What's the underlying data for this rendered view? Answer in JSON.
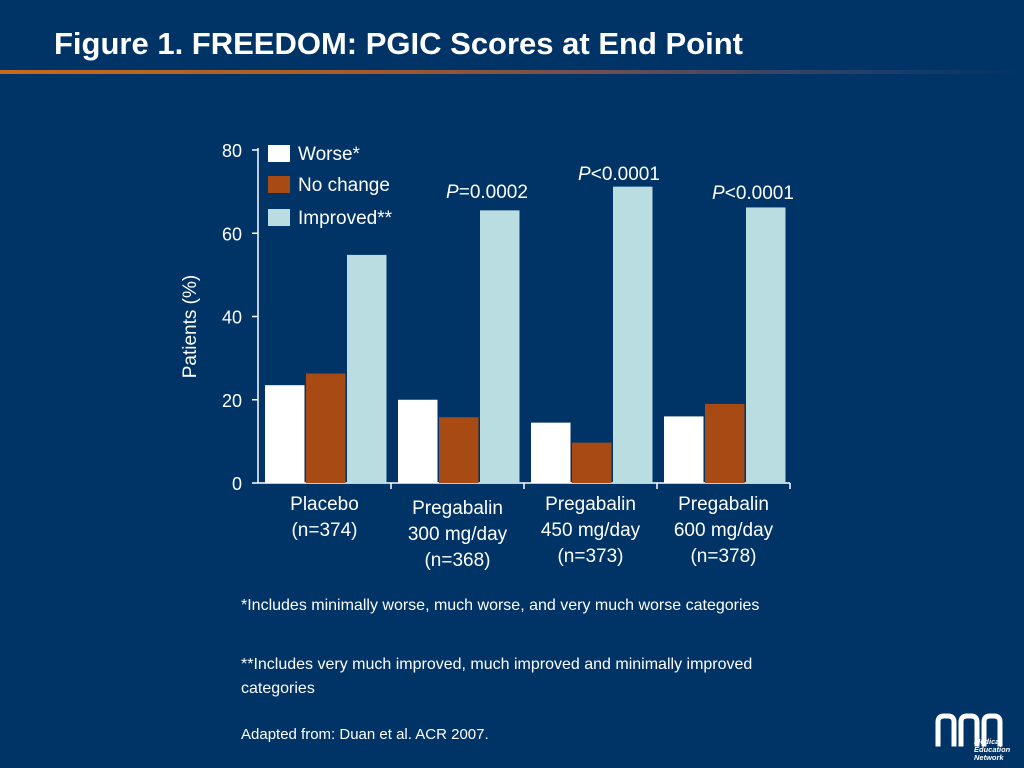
{
  "title": "Figure 1. FREEDOM: PGIC Scores at End Point",
  "colors": {
    "background": "#003366",
    "worse": "#ffffff",
    "no_change": "#a84a14",
    "improved": "#b9dde1",
    "title_rule": "#c86a1e"
  },
  "chart_data": {
    "type": "bar",
    "title": "",
    "xlabel": "",
    "ylabel": "Patients (%)",
    "ylim": [
      0,
      80
    ],
    "yticks": [
      0,
      20,
      40,
      60,
      80
    ],
    "categories": [
      [
        "Placebo",
        "(n=374)"
      ],
      [
        "Pregabalin",
        "300 mg/day",
        "(n=368)"
      ],
      [
        "Pregabalin",
        "450 mg/day",
        "(n=373)"
      ],
      [
        "Pregabalin",
        "600 mg/day",
        "(n=378)"
      ]
    ],
    "series": [
      {
        "name": "Worse*",
        "values": [
          23.5,
          20,
          14.5,
          16
        ]
      },
      {
        "name": "No change",
        "values": [
          26.3,
          15.8,
          9.7,
          19
        ]
      },
      {
        "name": "Improved**",
        "values": [
          54.8,
          65.5,
          71.2,
          66.2
        ]
      }
    ],
    "annotations": [
      {
        "category_index": 1,
        "italic": "P",
        "text": "=0.0002"
      },
      {
        "category_index": 2,
        "italic": "P",
        "text": "<0.0001"
      },
      {
        "category_index": 3,
        "italic": "P",
        "text": "<0.0001"
      }
    ],
    "legend_position": "top-left",
    "grid": false
  },
  "footnotes": {
    "worse": "*Includes minimally worse, much worse, and very much worse categories",
    "improved": "**Includes very much improved, much improved and minimally improved categories",
    "source": "Adapted from: Duan et al. ACR 2007."
  },
  "logo": {
    "letters": "mem",
    "lines": [
      "Medical",
      "Education",
      "Network"
    ]
  }
}
